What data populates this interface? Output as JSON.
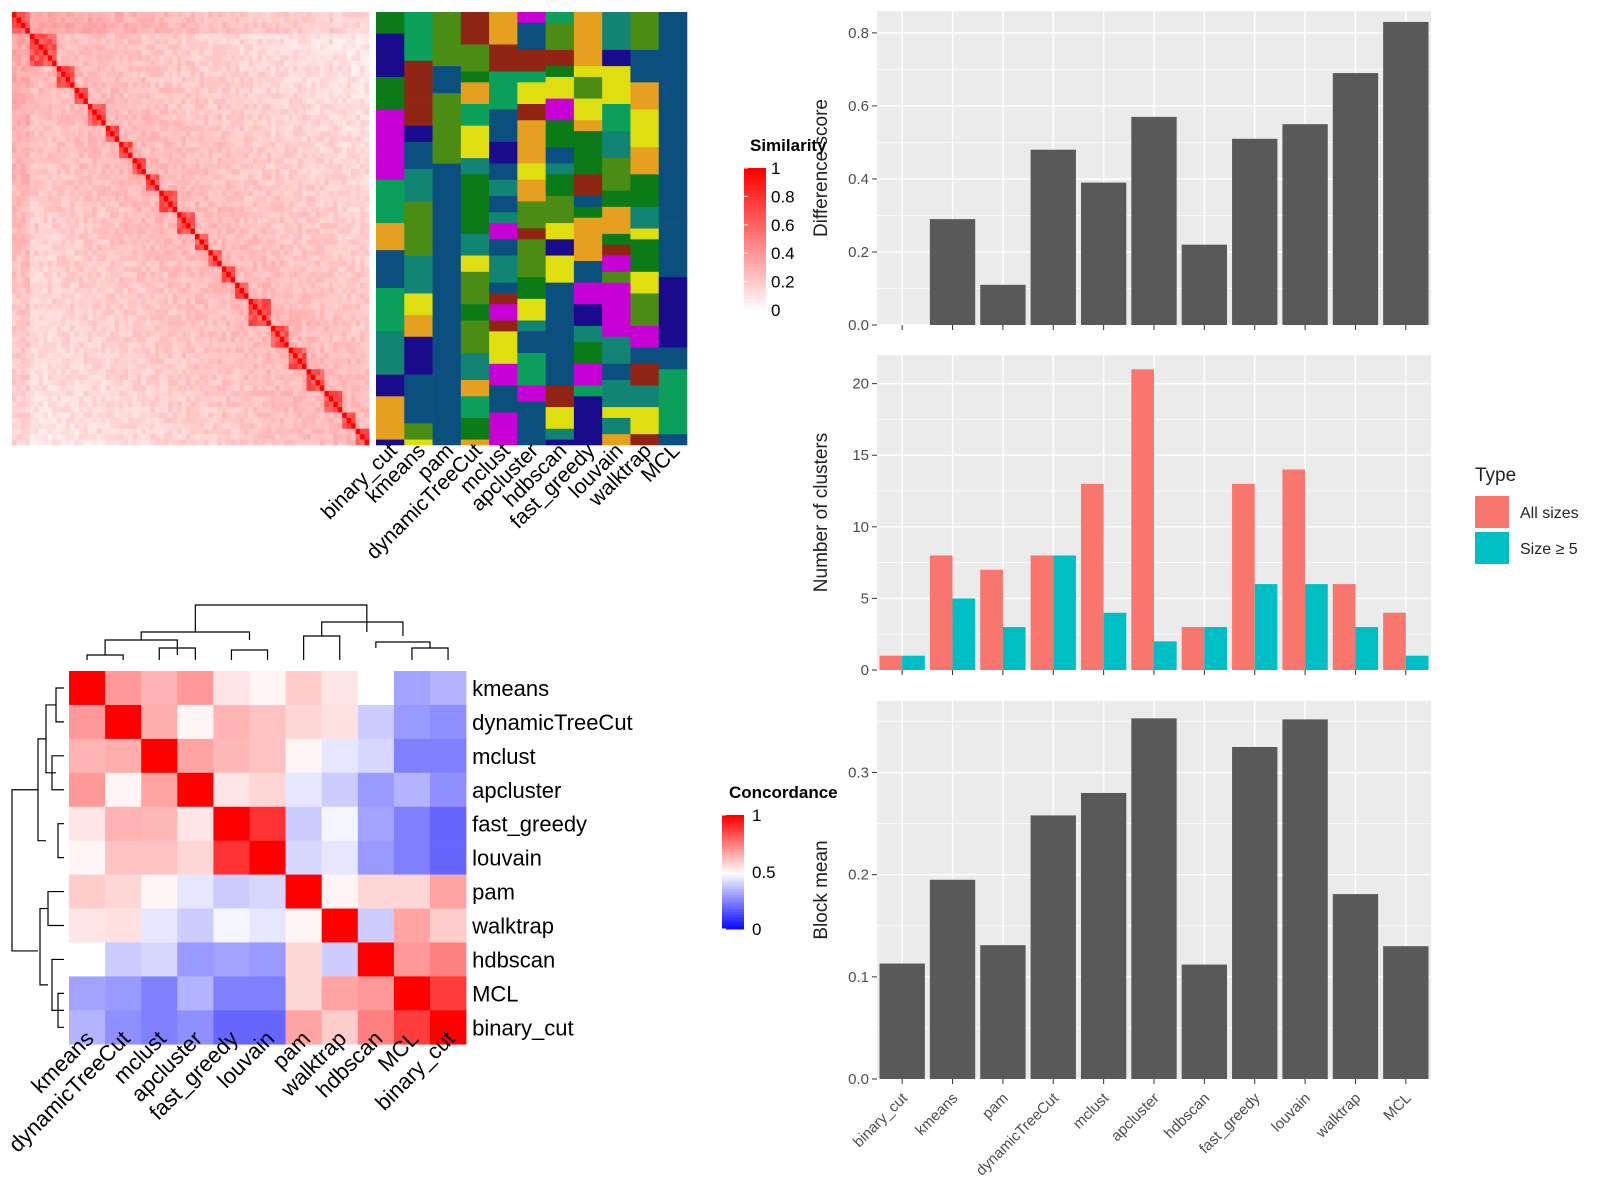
{
  "methods_top": [
    "binary_cut",
    "kmeans",
    "pam",
    "dynamicTreeCut",
    "mclust",
    "apcluster",
    "hdbscan",
    "fast_greedy",
    "louvain",
    "walktrap",
    "MCL"
  ],
  "similarity_legend": {
    "title": "Similarity",
    "ticks": [
      "1",
      "0.8",
      "0.6",
      "0.4",
      "0.2",
      "0"
    ],
    "low_color": "#ffffff",
    "high_color": "#ff0000"
  },
  "concordance_legend": {
    "title": "Concordance",
    "ticks": [
      "1",
      "0.5",
      "0"
    ],
    "low_color": "#0000ff",
    "mid_color": "#ffffff",
    "high_color": "#ff0000"
  },
  "label_palette": [
    "#0b4f7f",
    "#128474",
    "#0a7b17",
    "#1a0a8c",
    "#c800d6",
    "#8f2512",
    "#e6a020",
    "#0aa05c",
    "#dede10",
    "#4a8c14"
  ],
  "concordance": {
    "row_labels": [
      "kmeans",
      "dynamicTreeCut",
      "mclust",
      "apcluster",
      "fast_greedy",
      "louvain",
      "pam",
      "walktrap",
      "hdbscan",
      "MCL",
      "binary_cut"
    ],
    "col_labels": [
      "kmeans",
      "dynamicTreeCut",
      "mclust",
      "apcluster",
      "fast_greedy",
      "louvain",
      "pam",
      "walktrap",
      "hdbscan",
      "MCL",
      "binary_cut"
    ],
    "values": [
      [
        1.0,
        0.7,
        0.65,
        0.7,
        0.55,
        0.52,
        0.6,
        0.55,
        0.5,
        0.32,
        0.35
      ],
      [
        0.7,
        1.0,
        0.66,
        0.52,
        0.65,
        0.62,
        0.58,
        0.56,
        0.4,
        0.3,
        0.28
      ],
      [
        0.65,
        0.66,
        1.0,
        0.68,
        0.64,
        0.62,
        0.52,
        0.45,
        0.42,
        0.25,
        0.25
      ],
      [
        0.7,
        0.52,
        0.68,
        1.0,
        0.55,
        0.58,
        0.45,
        0.4,
        0.3,
        0.35,
        0.28
      ],
      [
        0.55,
        0.65,
        0.64,
        0.55,
        1.0,
        0.9,
        0.4,
        0.48,
        0.32,
        0.25,
        0.2
      ],
      [
        0.52,
        0.62,
        0.62,
        0.58,
        0.9,
        1.0,
        0.42,
        0.45,
        0.3,
        0.25,
        0.2
      ],
      [
        0.6,
        0.58,
        0.52,
        0.45,
        0.4,
        0.42,
        1.0,
        0.52,
        0.58,
        0.58,
        0.68
      ],
      [
        0.55,
        0.56,
        0.45,
        0.4,
        0.48,
        0.45,
        0.52,
        1.0,
        0.4,
        0.68,
        0.6
      ],
      [
        0.5,
        0.4,
        0.42,
        0.3,
        0.32,
        0.3,
        0.58,
        0.4,
        1.0,
        0.7,
        0.75
      ],
      [
        0.32,
        0.3,
        0.25,
        0.35,
        0.25,
        0.25,
        0.58,
        0.68,
        0.7,
        1.0,
        0.88
      ],
      [
        0.35,
        0.28,
        0.25,
        0.28,
        0.2,
        0.2,
        0.68,
        0.6,
        0.75,
        0.88,
        1.0
      ]
    ]
  },
  "chart_data": [
    {
      "type": "bar",
      "categories": [
        "binary_cut",
        "kmeans",
        "pam",
        "dynamicTreeCut",
        "mclust",
        "apcluster",
        "hdbscan",
        "fast_greedy",
        "louvain",
        "walktrap",
        "MCL"
      ],
      "values": [
        0.0,
        0.29,
        0.11,
        0.48,
        0.39,
        0.57,
        0.22,
        0.51,
        0.55,
        0.69,
        0.83
      ],
      "ylabel": "Difference score",
      "ylim": [
        0,
        0.86
      ],
      "yticks": [
        0.0,
        0.2,
        0.4,
        0.6,
        0.8
      ],
      "ytick_labels": [
        "0.0",
        "0.2",
        "0.4",
        "0.6",
        "0.8"
      ],
      "bar_color": "#595959",
      "grid": true
    },
    {
      "type": "bar",
      "categories": [
        "binary_cut",
        "kmeans",
        "pam",
        "dynamicTreeCut",
        "mclust",
        "apcluster",
        "hdbscan",
        "fast_greedy",
        "louvain",
        "walktrap",
        "MCL"
      ],
      "series": [
        {
          "name": "All sizes",
          "values": [
            1,
            8,
            7,
            8,
            13,
            21,
            3,
            13,
            14,
            6,
            4
          ],
          "color": "#f8766d"
        },
        {
          "name": "Size ≥ 5",
          "values": [
            1,
            5,
            3,
            8,
            4,
            2,
            3,
            6,
            6,
            3,
            1
          ],
          "color": "#00bfc4"
        }
      ],
      "ylabel": "Number of clusters",
      "ylim": [
        0,
        22
      ],
      "yticks": [
        0,
        5,
        10,
        15,
        20
      ],
      "ytick_labels": [
        "0",
        "5",
        "10",
        "15",
        "20"
      ],
      "legend_title": "Type",
      "legend_position": "right",
      "grid": true
    },
    {
      "type": "bar",
      "categories": [
        "binary_cut",
        "kmeans",
        "pam",
        "dynamicTreeCut",
        "mclust",
        "apcluster",
        "hdbscan",
        "fast_greedy",
        "louvain",
        "walktrap",
        "MCL"
      ],
      "values": [
        0.113,
        0.195,
        0.131,
        0.258,
        0.28,
        0.353,
        0.112,
        0.325,
        0.352,
        0.181,
        0.13
      ],
      "ylabel": "Block mean",
      "ylim": [
        0,
        0.37
      ],
      "yticks": [
        0.0,
        0.1,
        0.2,
        0.3
      ],
      "ytick_labels": [
        "0.0",
        "0.1",
        "0.2",
        "0.3"
      ],
      "bar_color": "#595959",
      "grid": true
    }
  ]
}
